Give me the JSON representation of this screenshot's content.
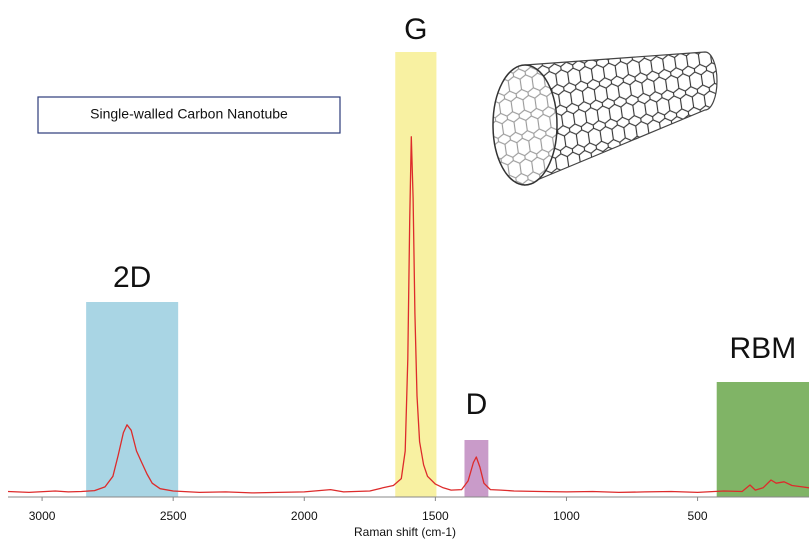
{
  "chart_data": {
    "type": "line",
    "inset_label": "Single-walled Carbon Nanotube",
    "xlabel": "Raman shift (cm-1)",
    "xlim": [
      3130,
      75
    ],
    "ylim": [
      0,
      100
    ],
    "xticks": [
      3000,
      2500,
      2000,
      1500,
      1000,
      500
    ],
    "color": "#dd2b2b",
    "x": [
      3130,
      3050,
      2950,
      2900,
      2850,
      2800,
      2760,
      2730,
      2710,
      2690,
      2676,
      2660,
      2640,
      2620,
      2600,
      2580,
      2550,
      2500,
      2400,
      2300,
      2200,
      2100,
      2000,
      1900,
      1850,
      1750,
      1700,
      1660,
      1630,
      1615,
      1605,
      1598,
      1592,
      1585,
      1578,
      1570,
      1560,
      1545,
      1530,
      1500,
      1470,
      1440,
      1400,
      1375,
      1355,
      1344,
      1330,
      1315,
      1290,
      1250,
      1200,
      1100,
      1000,
      900,
      800,
      700,
      600,
      500,
      400,
      330,
      300,
      280,
      250,
      220,
      200,
      170,
      140,
      100,
      75
    ],
    "values": [
      1.2,
      1.0,
      1.3,
      1.1,
      1.2,
      1.4,
      2.2,
      4.5,
      9,
      14,
      15.7,
      14.5,
      10,
      7.5,
      5,
      3,
      1.8,
      1.3,
      1.0,
      1.1,
      0.9,
      1.0,
      1.1,
      1.6,
      1.1,
      1.3,
      2.0,
      2.5,
      4,
      10,
      30,
      60,
      78.3,
      65,
      40,
      22,
      12,
      7,
      4.5,
      2.8,
      2.0,
      1.5,
      1.6,
      3.5,
      7.5,
      8.7,
      6.5,
      3,
      1.6,
      1.5,
      1.3,
      1.2,
      1.1,
      1.2,
      1.0,
      1.1,
      1.2,
      1.0,
      1.3,
      1.2,
      2.6,
      1.5,
      2.0,
      3.7,
      3.0,
      3.3,
      2.5,
      2.2,
      2.0
    ],
    "regions": [
      {
        "label": "2D",
        "color": "#a9d5e4",
        "range": [
          2832,
          2481
        ]
      },
      {
        "label": "G",
        "color": "#f8f1a2",
        "range": [
          1653,
          1496
        ]
      },
      {
        "label": "D",
        "color": "#c99bc9",
        "range": [
          1389,
          1298
        ]
      },
      {
        "label": "RBM",
        "color": "#80b466",
        "range": [
          427,
          75
        ]
      }
    ]
  }
}
